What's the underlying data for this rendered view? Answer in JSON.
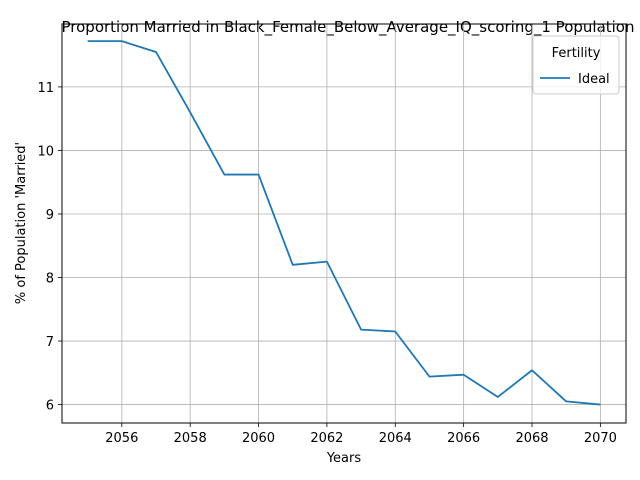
{
  "chart_data": {
    "type": "line",
    "title": "Proportion Married in Black_Female_Below_Average_IQ_scoring_1 Population",
    "xlabel": "Years",
    "ylabel": "% of Population 'Married'",
    "xlim": [
      2054.25,
      2070.75
    ],
    "ylim": [
      5.71,
      11.99
    ],
    "xticks": [
      2056,
      2058,
      2060,
      2062,
      2064,
      2066,
      2068,
      2070
    ],
    "yticks": [
      6,
      7,
      8,
      9,
      10,
      11
    ],
    "grid": true,
    "legend": {
      "title": "Fertility",
      "placement": "top-right"
    },
    "series": [
      {
        "name": "Ideal",
        "color": "#1f77b4",
        "x": [
          2055,
          2056,
          2057,
          2058,
          2059,
          2060,
          2061,
          2062,
          2063,
          2064,
          2065,
          2066,
          2067,
          2068,
          2069,
          2070
        ],
        "y": [
          11.72,
          11.72,
          11.55,
          10.6,
          9.62,
          9.62,
          8.2,
          8.25,
          7.18,
          7.15,
          6.44,
          6.47,
          6.12,
          6.54,
          6.05,
          6.0
        ]
      }
    ]
  }
}
